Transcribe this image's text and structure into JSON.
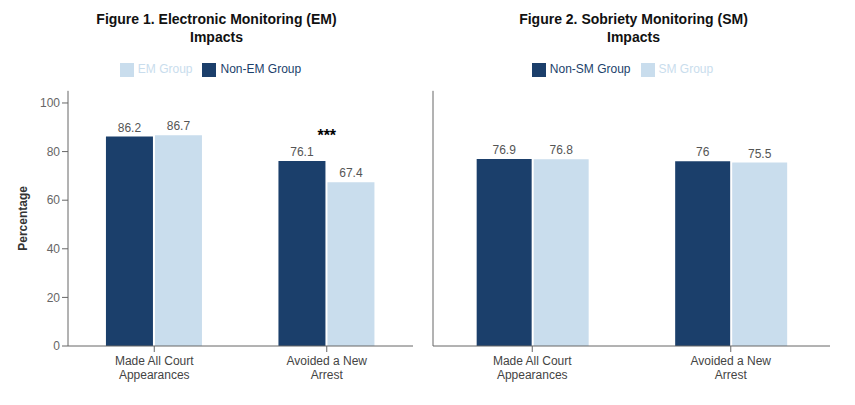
{
  "chart_data": [
    {
      "type": "bar",
      "title": "Figure 1. Electronic Monitoring (EM)\nImpacts",
      "categories": [
        "Made All Court\nAppearances",
        "Avoided a New\nArrest"
      ],
      "series": [
        {
          "name": "Non-EM Group",
          "color": "#1b3f6b",
          "values": [
            86.2,
            76.1
          ]
        },
        {
          "name": "EM Group",
          "color": "#c9dded",
          "values": [
            86.7,
            67.4
          ]
        }
      ],
      "ylabel": "Percentage",
      "ylim": [
        0,
        105
      ],
      "yticks": [
        0,
        20,
        40,
        60,
        80,
        100
      ],
      "grid": false,
      "legend": "top",
      "data_labels": true,
      "annotations": [
        {
          "text": "***",
          "category": "Avoided a New\nArrest"
        }
      ]
    },
    {
      "type": "bar",
      "title": "Figure 2. Sobriety Monitoring (SM)\nImpacts",
      "categories": [
        "Made All Court\nAppearances",
        "Avoided a New\nArrest"
      ],
      "series": [
        {
          "name": "Non-SM Group",
          "color": "#1b3f6b",
          "values": [
            76.9,
            76.0
          ]
        },
        {
          "name": "SM Group",
          "color": "#c9dded",
          "values": [
            76.8,
            75.5
          ]
        }
      ],
      "ylim": [
        0,
        105
      ],
      "yticks": [
        0,
        20,
        40,
        60,
        80,
        100
      ],
      "grid": false,
      "legend": "top",
      "data_labels": true,
      "tick_labels": "x"
    }
  ]
}
